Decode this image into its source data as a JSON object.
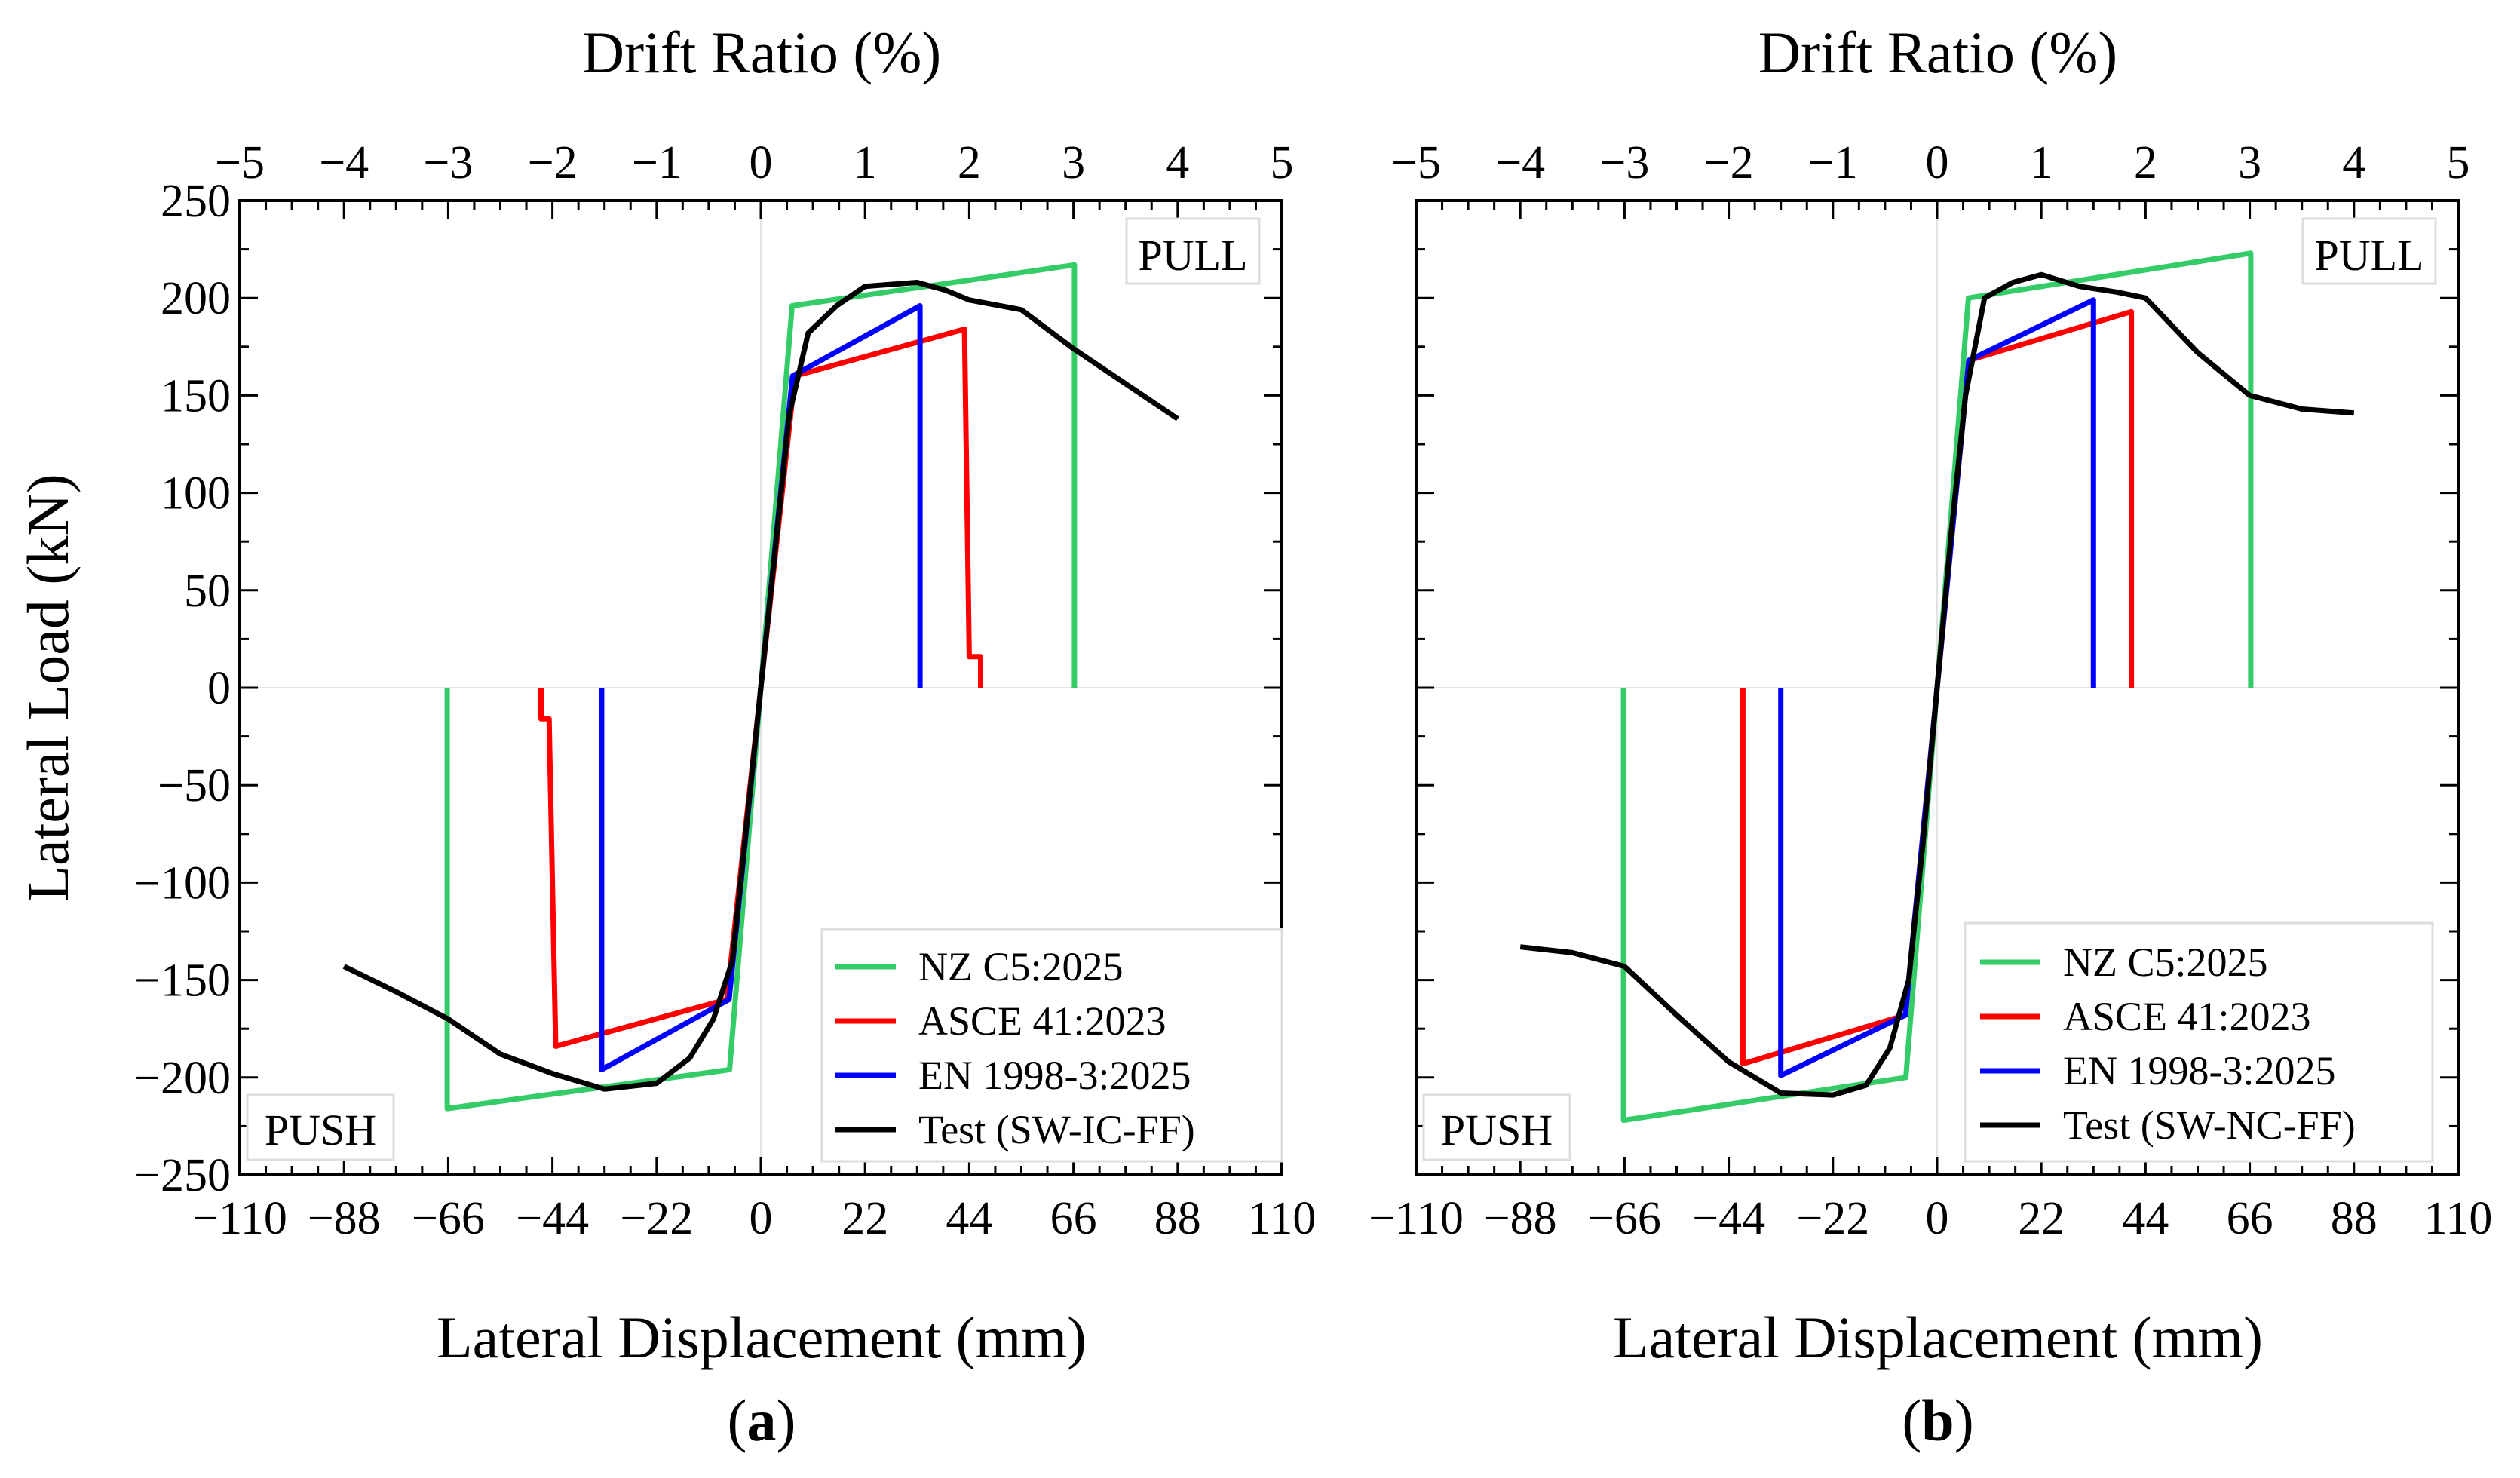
{
  "figure": {
    "panels": [
      {
        "label_open": "(",
        "label_letter": "a",
        "label_close": ")"
      },
      {
        "label_open": "(",
        "label_letter": "b",
        "label_close": ")"
      }
    ]
  },
  "colors": {
    "nz": "#33cc66",
    "asce": "#ff0000",
    "en": "#0000ff",
    "test": "#000000"
  },
  "chart_data": [
    {
      "type": "line",
      "panel": "a",
      "title": "",
      "xlabel": "Lateral Displacement (mm)",
      "x2label": "Drift Ratio (%)",
      "ylabel": "Lateral Load (kN)",
      "xlim": [
        -110,
        110
      ],
      "ylim": [
        -250,
        250
      ],
      "x2lim": [
        -5,
        5
      ],
      "x_ticks": [
        -110,
        -88,
        -66,
        -44,
        -22,
        0,
        22,
        44,
        66,
        88,
        110
      ],
      "x_tick_labels": [
        "−110",
        "−88",
        "−66",
        "−44",
        "−22",
        "0",
        "22",
        "44",
        "66",
        "88",
        "110"
      ],
      "y_ticks": [
        -250,
        -200,
        -150,
        -100,
        -50,
        0,
        50,
        100,
        150,
        200,
        250
      ],
      "y_tick_labels": [
        "−250",
        "−200",
        "−150",
        "−100",
        "−50",
        "0",
        "50",
        "100",
        "150",
        "200",
        "250"
      ],
      "x2_ticks": [
        -5,
        -4,
        -3,
        -2,
        -1,
        0,
        1,
        2,
        3,
        4,
        5
      ],
      "x2_tick_labels": [
        "−5",
        "−4",
        "−3",
        "−2",
        "−1",
        "0",
        "1",
        "2",
        "3",
        "4",
        "5"
      ],
      "annotations": {
        "pull": "PULL",
        "push": "PUSH"
      },
      "legend_position": "bottom-right",
      "series": [
        {
          "name": "NZ C5:2025",
          "color": "#33cc66",
          "x": [
            -66.2,
            -66.2,
            -6.6,
            0,
            6.6,
            66.2,
            66.2
          ],
          "y": [
            0,
            -216,
            -196,
            0,
            196,
            217,
            0
          ]
        },
        {
          "name": "ASCE 41:2023",
          "color": "#ff0000",
          "x": [
            -46.4,
            -46.4,
            -44.7,
            -44.7,
            -43.0,
            -7.2,
            0,
            7.2,
            43.0,
            44.7,
            44.7,
            46.4,
            46.4
          ],
          "y": [
            0,
            -16,
            -16,
            -16,
            -184,
            -160,
            0,
            160,
            184,
            16,
            16,
            16,
            0
          ],
          "x_plot": [
            -46.4,
            -46.4,
            -44.7,
            -44.7,
            -43.3,
            -7.2,
            0,
            7.2,
            43.0,
            44.0,
            44.7,
            46.4,
            46.4
          ],
          "y_plot": [
            0,
            -16,
            -16,
            -16,
            -184,
            -160,
            0,
            160,
            184,
            16,
            16,
            16,
            0
          ]
        },
        {
          "name": "EN 1998-3:2025",
          "color": "#0000ff",
          "x": [
            -33.6,
            -33.6,
            -6.7,
            0,
            6.7,
            33.6,
            33.6
          ],
          "y": [
            0,
            -196,
            -160,
            0,
            160,
            196,
            0
          ]
        },
        {
          "name": "Test (SW-IC-FF)",
          "color": "#000000",
          "x": [
            -88,
            -77,
            -66,
            -55,
            -44,
            -33,
            -22,
            -15,
            -10,
            -6,
            -3,
            0,
            3,
            6,
            10,
            16,
            22,
            33,
            39,
            44,
            55,
            66,
            77,
            88
          ],
          "y": [
            -143,
            -156,
            -170,
            -188,
            -198,
            -206,
            -203,
            -190,
            -170,
            -140,
            -70,
            0,
            70,
            140,
            182,
            196,
            206,
            208,
            204,
            199,
            194,
            174,
            156,
            138
          ]
        }
      ]
    },
    {
      "type": "line",
      "panel": "b",
      "title": "",
      "xlabel": "Lateral Displacement (mm)",
      "x2label": "Drift Ratio (%)",
      "ylabel": "",
      "xlim": [
        -110,
        110
      ],
      "ylim": [
        -250,
        250
      ],
      "x2lim": [
        -5,
        5
      ],
      "x_ticks": [
        -110,
        -88,
        -66,
        -44,
        -22,
        0,
        22,
        44,
        66,
        88,
        110
      ],
      "x_tick_labels": [
        "−110",
        "−88",
        "−66",
        "−44",
        "−22",
        "0",
        "22",
        "44",
        "66",
        "88",
        "110"
      ],
      "y_ticks": [
        -250,
        -200,
        -150,
        -100,
        -50,
        0,
        50,
        100,
        150,
        200,
        250
      ],
      "x2_ticks": [
        -5,
        -4,
        -3,
        -2,
        -1,
        0,
        1,
        2,
        3,
        4,
        5
      ],
      "x2_tick_labels": [
        "−5",
        "−4",
        "−3",
        "−2",
        "−1",
        "0",
        "1",
        "2",
        "3",
        "4",
        "5"
      ],
      "annotations": {
        "pull": "PULL",
        "push": "PUSH"
      },
      "legend_position": "bottom-right",
      "series": [
        {
          "name": "NZ C5:2025",
          "color": "#33cc66",
          "x": [
            -66.2,
            -66.2,
            -6.6,
            0,
            6.6,
            66.2,
            66.2
          ],
          "y": [
            0,
            -222,
            -200,
            0,
            200,
            223,
            0
          ]
        },
        {
          "name": "ASCE 41:2023",
          "color": "#ff0000",
          "x": [
            -41,
            -41,
            -6.7,
            0,
            6.7,
            41,
            41
          ],
          "y": [
            0,
            -193,
            -168,
            0,
            168,
            193,
            0
          ]
        },
        {
          "name": "EN 1998-3:2025",
          "color": "#0000ff",
          "x": [
            -33,
            -33,
            -6.7,
            0,
            6.7,
            33,
            33
          ],
          "y": [
            0,
            -199,
            -168,
            0,
            168,
            199,
            0
          ]
        },
        {
          "name": "Test (SW-NC-FF)",
          "color": "#000000",
          "x": [
            -88,
            -77,
            -66,
            -55,
            -44,
            -33,
            -22,
            -15,
            -10,
            -6,
            -3,
            0,
            3,
            6,
            10,
            16,
            22,
            30,
            38,
            44,
            55,
            66,
            77,
            88
          ],
          "y": [
            -133,
            -136,
            -143,
            -168,
            -192,
            -208,
            -209,
            -204,
            -185,
            -150,
            -80,
            0,
            80,
            150,
            200,
            208,
            212,
            206,
            203,
            200,
            172,
            150,
            143,
            141
          ]
        }
      ]
    }
  ]
}
